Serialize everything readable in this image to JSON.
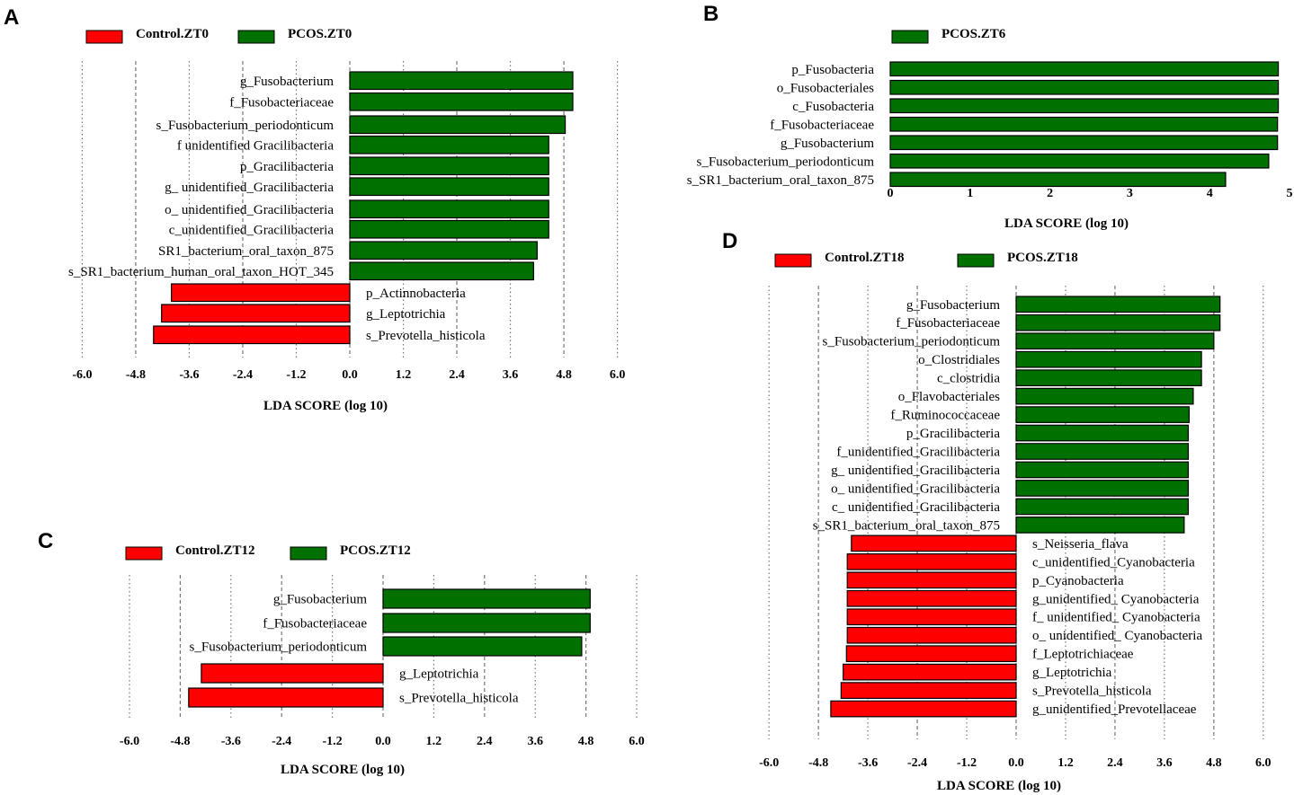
{
  "figure": {
    "colors": {
      "control": "#ff0000",
      "pcos": "#007000",
      "grid": "#777777",
      "text": "#000000"
    }
  },
  "chart_data": [
    {
      "id": "A",
      "type": "bar",
      "orientation": "horizontal",
      "legend": [
        "Control.ZT0",
        "PCOS.ZT0"
      ],
      "xlabel": "LDA SCORE (log 10)",
      "xlim": [
        -6,
        6
      ],
      "ticks": [
        -6,
        -4.8,
        -3.6,
        -2.4,
        -1.2,
        0,
        1.2,
        2.4,
        3.6,
        4.8,
        6
      ],
      "tick_labels": [
        "-6.0",
        "-4.8",
        "-3.6",
        "-2.4",
        "-1.2",
        "0.0",
        "1.2",
        "2.4",
        "3.6",
        "4.8",
        "6.0"
      ],
      "grid": "dashed",
      "bars": [
        {
          "label": "g_Fusobacterium",
          "value": 5.0,
          "group": "PCOS.ZT0"
        },
        {
          "label": "f_Fusobacteriaceae",
          "value": 5.0,
          "group": "PCOS.ZT0"
        },
        {
          "label": "s_Fusobacterium_periodonticum",
          "value": 4.83,
          "group": "PCOS.ZT0"
        },
        {
          "label": "f unidentified Gracilibacteria",
          "value": 4.46,
          "group": "PCOS.ZT0"
        },
        {
          "label": "p_Gracilibacteria",
          "value": 4.46,
          "group": "PCOS.ZT0"
        },
        {
          "label": "g_ unidentified_Gracilibacteria",
          "value": 4.46,
          "group": "PCOS.ZT0"
        },
        {
          "label": "o_ unidentified_Gracilibacteria",
          "value": 4.46,
          "group": "PCOS.ZT0"
        },
        {
          "label": "c_unidentified_Gracilibacteria",
          "value": 4.46,
          "group": "PCOS.ZT0"
        },
        {
          "label": "SR1_bacterium_oral_taxon_875",
          "value": 4.2,
          "group": "PCOS.ZT0"
        },
        {
          "label": "s_SR1_bacterium_human_oral_taxon_HOT_345",
          "value": 4.12,
          "group": "PCOS.ZT0"
        },
        {
          "label": "p_Actinnobacteria",
          "value": -4.0,
          "group": "Control.ZT0"
        },
        {
          "label": "g_Leptotrichia",
          "value": -4.22,
          "group": "Control.ZT0"
        },
        {
          "label": "s_Prevotella_histicola",
          "value": -4.4,
          "group": "Control.ZT0"
        }
      ]
    },
    {
      "id": "B",
      "type": "bar",
      "orientation": "horizontal",
      "legend": [
        "PCOS.ZT6"
      ],
      "xlabel": "LDA SCORE (log 10)",
      "xlim": [
        0,
        5
      ],
      "ticks": [
        0,
        1,
        2,
        3,
        4,
        5
      ],
      "tick_labels": [
        "0",
        "1",
        "2",
        "3",
        "4",
        "5"
      ],
      "grid": "none",
      "bars": [
        {
          "label": "p_Fusobacteria",
          "value": 4.86,
          "group": "PCOS.ZT6"
        },
        {
          "label": "o_Fusobacteriales",
          "value": 4.86,
          "group": "PCOS.ZT6"
        },
        {
          "label": "c_Fusobacteria",
          "value": 4.86,
          "group": "PCOS.ZT6"
        },
        {
          "label": "f_Fusobacteriaceae",
          "value": 4.85,
          "group": "PCOS.ZT6"
        },
        {
          "label": "g_Fusobacterium",
          "value": 4.85,
          "group": "PCOS.ZT6"
        },
        {
          "label": "s_Fusobacterium_periodonticum",
          "value": 4.74,
          "group": "PCOS.ZT6"
        },
        {
          "label": "s_SR1_bacterium_oral_taxon_875",
          "value": 4.2,
          "group": "PCOS.ZT6"
        }
      ]
    },
    {
      "id": "C",
      "type": "bar",
      "orientation": "horizontal",
      "legend": [
        "Control.ZT12",
        "PCOS.ZT12"
      ],
      "xlabel": "LDA SCORE (log 10)",
      "xlim": [
        -6,
        6
      ],
      "ticks": [
        -6,
        -4.8,
        -3.6,
        -2.4,
        -1.2,
        0,
        1.2,
        2.4,
        3.6,
        4.8,
        6
      ],
      "tick_labels": [
        "-6.0",
        "-4.8",
        "-3.6",
        "-2.4",
        "-1.2",
        "0.0",
        "1.2",
        "2.4",
        "3.6",
        "4.8",
        "6.0"
      ],
      "grid": "dashed",
      "bars": [
        {
          "label": "g_Fusobacterium",
          "value": 4.9,
          "group": "PCOS.ZT12"
        },
        {
          "label": "f_Fusobacteriaceae",
          "value": 4.9,
          "group": "PCOS.ZT12"
        },
        {
          "label": "s_Fusobacterium_periodonticum",
          "value": 4.7,
          "group": "PCOS.ZT12"
        },
        {
          "label": "g_Leptotrichia",
          "value": -4.3,
          "group": "Control.ZT12"
        },
        {
          "label": "s_Prevotella_histicola",
          "value": -4.6,
          "group": "Control.ZT12"
        }
      ]
    },
    {
      "id": "D",
      "type": "bar",
      "orientation": "horizontal",
      "legend": [
        "Control.ZT18",
        "PCOS.ZT18"
      ],
      "xlabel": "LDA SCORE (log 10)",
      "xlim": [
        -6,
        6
      ],
      "ticks": [
        -6,
        -4.8,
        -3.6,
        -2.4,
        -1.2,
        0,
        1.2,
        2.4,
        3.6,
        4.8,
        6
      ],
      "tick_labels": [
        "-6.0",
        "-4.8",
        "-3.6",
        "-2.4",
        "-1.2",
        "0.0",
        "1.2",
        "2.4",
        "3.6",
        "4.8",
        "6.0"
      ],
      "grid": "dashed",
      "bars": [
        {
          "label": "g_Fusobacterium",
          "value": 4.95,
          "group": "PCOS.ZT18"
        },
        {
          "label": "f_Fusobacteriaceae",
          "value": 4.95,
          "group": "PCOS.ZT18"
        },
        {
          "label": "s_Fusobacterium_periodonticum",
          "value": 4.8,
          "group": "PCOS.ZT18"
        },
        {
          "label": "o_Clostridiales",
          "value": 4.5,
          "group": "PCOS.ZT18"
        },
        {
          "label": "c_clostridia",
          "value": 4.5,
          "group": "PCOS.ZT18"
        },
        {
          "label": "o_Flavobacteriales",
          "value": 4.3,
          "group": "PCOS.ZT18"
        },
        {
          "label": "f_Ruminococcaceae",
          "value": 4.2,
          "group": "PCOS.ZT18"
        },
        {
          "label": "p_Gracilibacteria",
          "value": 4.18,
          "group": "PCOS.ZT18"
        },
        {
          "label": "f_unidentified_Gracilibacteria",
          "value": 4.18,
          "group": "PCOS.ZT18"
        },
        {
          "label": "g_ unidentified_Gracilibacteria",
          "value": 4.18,
          "group": "PCOS.ZT18"
        },
        {
          "label": "o_ unidentified_Gracilibacteria",
          "value": 4.18,
          "group": "PCOS.ZT18"
        },
        {
          "label": "c_ unidentified_Gracilibacteria",
          "value": 4.18,
          "group": "PCOS.ZT18"
        },
        {
          "label": "s_SR1_bacterium_oral_taxon_875",
          "value": 4.08,
          "group": "PCOS.ZT18"
        },
        {
          "label": "s_Neisseria_flava",
          "value": -4.0,
          "group": "Control.ZT18"
        },
        {
          "label": "c_unidentified_Cyanobacteria",
          "value": -4.1,
          "group": "Control.ZT18"
        },
        {
          "label": "p_Cyanobacteria",
          "value": -4.1,
          "group": "Control.ZT18"
        },
        {
          "label": "g_unidentified_ Cyanobacteria",
          "value": -4.1,
          "group": "Control.ZT18"
        },
        {
          "label": "f_ unidentified_ Cyanobacteria",
          "value": -4.1,
          "group": "Control.ZT18"
        },
        {
          "label": "o_ unidentified_ Cyanobacteria",
          "value": -4.1,
          "group": "Control.ZT18"
        },
        {
          "label": "f_Leptotrichiaceae",
          "value": -4.12,
          "group": "Control.ZT18"
        },
        {
          "label": "g_Leptotrichia",
          "value": -4.2,
          "group": "Control.ZT18"
        },
        {
          "label": "s_Prevotella_histicola",
          "value": -4.25,
          "group": "Control.ZT18"
        },
        {
          "label": "g_unidentified_Prevotellaceae",
          "value": -4.5,
          "group": "Control.ZT18"
        }
      ]
    }
  ]
}
